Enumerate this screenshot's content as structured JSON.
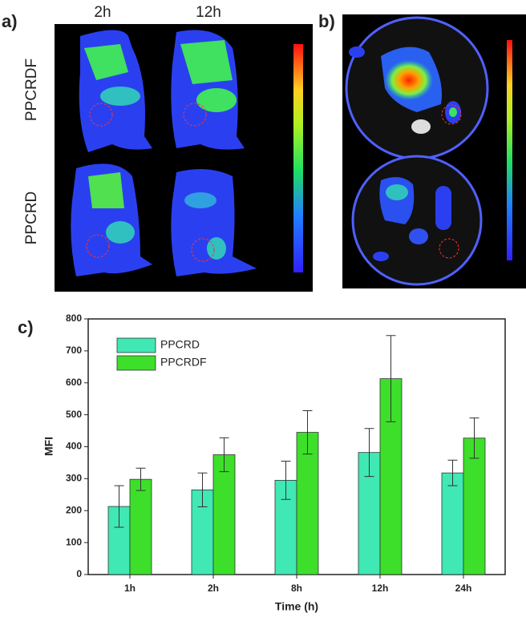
{
  "panel_a": {
    "label": "a)",
    "columns": [
      "2h",
      "12h"
    ],
    "rows": [
      "PPCRDF",
      "PPCRD"
    ]
  },
  "panel_b": {
    "label": "b)"
  },
  "chart_data": {
    "type": "bar",
    "panel_label": "c)",
    "x_label": "Time (h)",
    "y_label": "MFI",
    "categories": [
      "1h",
      "2h",
      "8h",
      "12h",
      "24h"
    ],
    "series": [
      {
        "name": "PPCRD",
        "color": "#40e8b4",
        "values": [
          213,
          265,
          295,
          382,
          318
        ],
        "errors": [
          65,
          53,
          60,
          75,
          40
        ]
      },
      {
        "name": "PPCRDF",
        "color": "#3ddf2a",
        "values": [
          298,
          375,
          445,
          613,
          427
        ],
        "errors": [
          35,
          53,
          68,
          135,
          63
        ]
      }
    ],
    "ylim": [
      0,
      800
    ],
    "yticks": [
      0,
      100,
      200,
      300,
      400,
      500,
      600,
      700,
      800
    ],
    "legend": "upper left"
  }
}
